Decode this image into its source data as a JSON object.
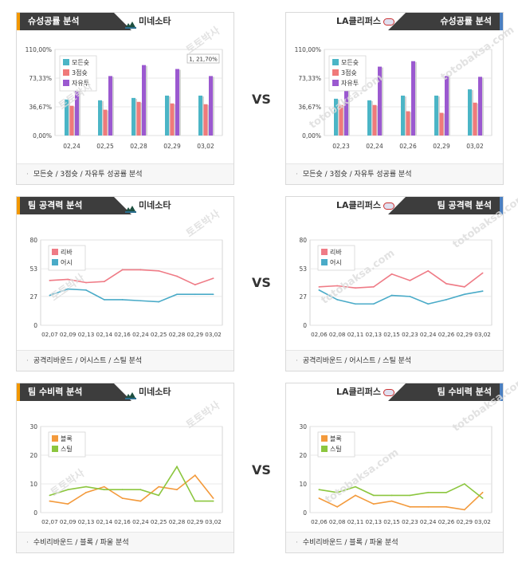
{
  "vs_label": "VS",
  "watermark": [
    "토토박사",
    "totobaksa.com"
  ],
  "colors": {
    "accent_orange": "#f39800",
    "accent_blue": "#4a7fc1",
    "header_dark": "#3d3d3d",
    "teal": "#4bb5c6",
    "salmon": "#f07a7a",
    "purple": "#9b59d0",
    "pink_line": "#ef7b86",
    "blue_line": "#4aabc8",
    "orange_line": "#f39a3c",
    "green_line": "#8cc63f"
  },
  "panels": [
    {
      "side": "left",
      "section_title": "슈성공률 분석",
      "team_name": "미네소타",
      "team_icon": "minnesota-logo-icon",
      "footer": "모든슛 / 3점슛 / 자유투 성공률 분석",
      "chart_data": {
        "type": "bar",
        "categories": [
          "02,24",
          "02,25",
          "02,28",
          "02,29",
          "03,02"
        ],
        "series": [
          {
            "name": "모든슛",
            "color": "#4bb5c6",
            "values": [
              46,
              45,
              48,
              51,
              51
            ]
          },
          {
            "name": "3점슛",
            "color": "#f07a7a",
            "values": [
              38,
              33,
              43,
              41,
              40
            ]
          },
          {
            "name": "자유투",
            "color": "#9b59d0",
            "values": [
              61,
              76,
              90,
              85,
              76
            ]
          }
        ],
        "ylim": [
          0,
          110
        ],
        "yticks": [
          "110,00%",
          "73,33%",
          "36,67%",
          "0,00%"
        ],
        "yticks_values": [
          110,
          73.33,
          36.67,
          0
        ],
        "tooltip": "1, 21,70%",
        "legend": "top-left"
      }
    },
    {
      "side": "right",
      "section_title": "슈성공률 분석",
      "team_name": "LA클리퍼스",
      "team_icon": "clippers-logo-icon",
      "footer": "모든슛 / 3점슛 / 자유투 성공률 분석",
      "chart_data": {
        "type": "bar",
        "categories": [
          "02,23",
          "02,24",
          "02,26",
          "02,29",
          "03,02"
        ],
        "series": [
          {
            "name": "모든슛",
            "color": "#4bb5c6",
            "values": [
              47,
              45,
              51,
              51,
              59
            ]
          },
          {
            "name": "3점슛",
            "color": "#f07a7a",
            "values": [
              39,
              39,
              31,
              29,
              42
            ]
          },
          {
            "name": "자유투",
            "color": "#9b59d0",
            "values": [
              64,
              88,
              95,
              76,
              75
            ]
          }
        ],
        "ylim": [
          0,
          110
        ],
        "yticks": [
          "110,00%",
          "73,33%",
          "36,67%",
          "0,00%"
        ],
        "yticks_values": [
          110,
          73.33,
          36.67,
          0
        ],
        "legend": "top-left"
      }
    },
    {
      "side": "left",
      "section_title": "팀 공격력 분석",
      "team_name": "미네소타",
      "team_icon": "minnesota-logo-icon",
      "footer": "공격리바운드 / 어시스트 / 스틸 분석",
      "chart_data": {
        "type": "line",
        "categories": [
          "02,07",
          "02,09",
          "02,13",
          "02,14",
          "02,16",
          "02,24",
          "02,25",
          "02,28",
          "02,29",
          "03,02"
        ],
        "series": [
          {
            "name": "리바",
            "color": "#ef7b86",
            "values": [
              42,
              43,
              40,
              41,
              52,
              52,
              51,
              46,
              38,
              44
            ]
          },
          {
            "name": "어시",
            "color": "#4aabc8",
            "values": [
              28,
              34,
              33,
              24,
              24,
              23,
              22,
              29,
              29,
              29
            ]
          }
        ],
        "ylim": [
          0,
          80
        ],
        "yticks": [
          "80",
          "53",
          "27",
          "0"
        ],
        "yticks_values": [
          80,
          53,
          27,
          0
        ],
        "legend": "top-left"
      }
    },
    {
      "side": "right",
      "section_title": "팀 공격력 분석",
      "team_name": "LA클리퍼스",
      "team_icon": "clippers-logo-icon",
      "footer": "공격리바운드 / 어시스트 / 스틸 분석",
      "chart_data": {
        "type": "line",
        "categories": [
          "02,06",
          "02,08",
          "02,11",
          "02,13",
          "02,15",
          "02,23",
          "02,24",
          "02,26",
          "02,29",
          "03,02"
        ],
        "series": [
          {
            "name": "리바",
            "color": "#ef7b86",
            "values": [
              36,
              37,
              35,
              36,
              48,
              42,
              51,
              39,
              36,
              49
            ]
          },
          {
            "name": "어시",
            "color": "#4aabc8",
            "values": [
              33,
              24,
              20,
              20,
              28,
              27,
              20,
              24,
              29,
              32
            ]
          }
        ],
        "ylim": [
          0,
          80
        ],
        "yticks": [
          "80",
          "53",
          "27",
          "0"
        ],
        "yticks_values": [
          80,
          53,
          27,
          0
        ],
        "legend": "top-left"
      }
    },
    {
      "side": "left",
      "section_title": "팀 수비력 분석",
      "team_name": "미네소타",
      "team_icon": "minnesota-logo-icon",
      "footer": "수비리바운드 / 블록 / 파울 분석",
      "chart_data": {
        "type": "line",
        "categories": [
          "02,07",
          "02,09",
          "02,13",
          "02,14",
          "02,16",
          "02,24",
          "02,25",
          "02,28",
          "02,29",
          "03,02"
        ],
        "series": [
          {
            "name": "블록",
            "color": "#f39a3c",
            "values": [
              4,
              3,
              7,
              9,
              5,
              4,
              9,
              8,
              13,
              5
            ]
          },
          {
            "name": "스틸",
            "color": "#8cc63f",
            "values": [
              6,
              8,
              9,
              8,
              8,
              8,
              6,
              16,
              4,
              4
            ]
          }
        ],
        "ylim": [
          0,
          30
        ],
        "yticks": [
          "30",
          "20",
          "10",
          "0"
        ],
        "yticks_values": [
          30,
          20,
          10,
          0
        ],
        "legend": "top-left"
      }
    },
    {
      "side": "right",
      "section_title": "팀 수비력 분석",
      "team_name": "LA클리퍼스",
      "team_icon": "clippers-logo-icon",
      "footer": "수비리바운드 / 블록 / 파울 분석",
      "chart_data": {
        "type": "line",
        "categories": [
          "02,06",
          "02,08",
          "02,11",
          "02,13",
          "02,15",
          "02,23",
          "02,24",
          "02,26",
          "02,29",
          "03,02"
        ],
        "series": [
          {
            "name": "블록",
            "color": "#f39a3c",
            "values": [
              5,
              2,
              6,
              3,
              4,
              2,
              2,
              2,
              1,
              7
            ]
          },
          {
            "name": "스틸",
            "color": "#8cc63f",
            "values": [
              8,
              7,
              9,
              6,
              6,
              6,
              7,
              7,
              10,
              5
            ]
          }
        ],
        "ylim": [
          0,
          30
        ],
        "yticks": [
          "30",
          "20",
          "10",
          "0"
        ],
        "yticks_values": [
          30,
          20,
          10,
          0
        ],
        "legend": "top-left"
      }
    }
  ]
}
